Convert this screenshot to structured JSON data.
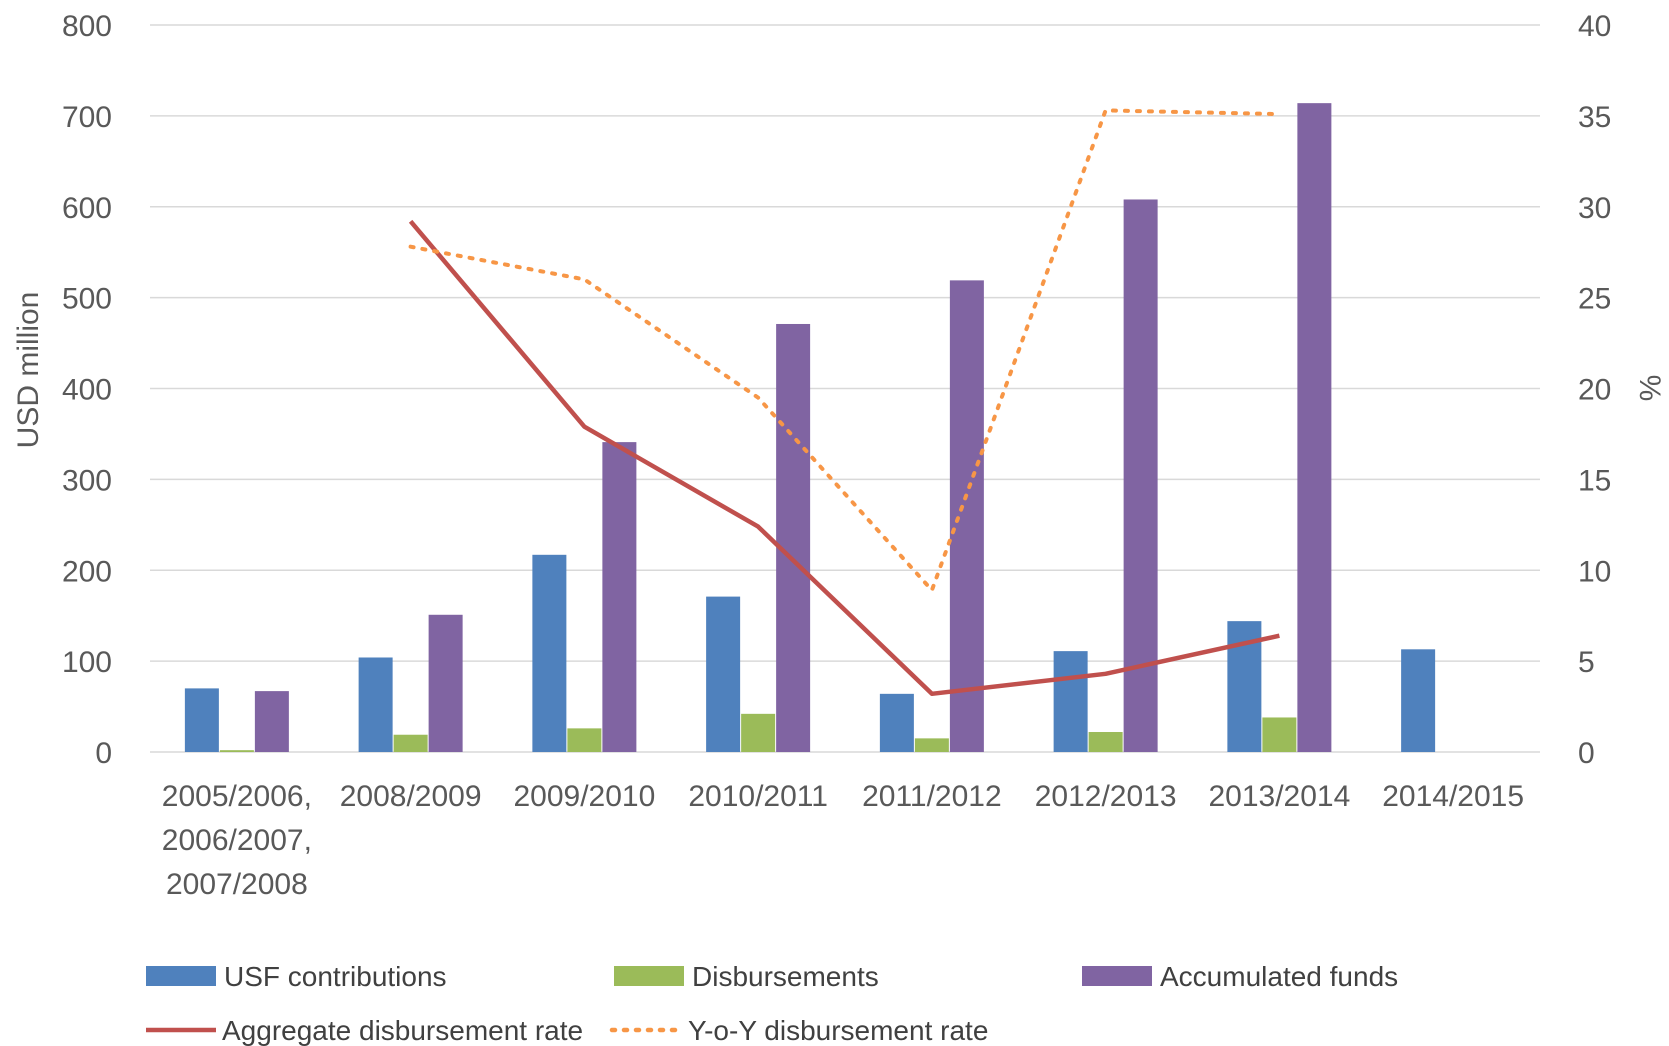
{
  "chart_data": {
    "type": "bar",
    "categories": [
      [
        "2005/2006,",
        "2006/2007,",
        "2007/2008"
      ],
      [
        "2008/2009"
      ],
      [
        "2009/2010"
      ],
      [
        "2010/2011"
      ],
      [
        "2011/2012"
      ],
      [
        "2012/2013"
      ],
      [
        "2013/2014"
      ],
      [
        "2014/2015"
      ]
    ],
    "ylabel": "USD million",
    "y2label": "%",
    "ylim": [
      0,
      800
    ],
    "y2lim": [
      0,
      40
    ],
    "yticks": [
      "0",
      "100",
      "200",
      "300",
      "400",
      "500",
      "600",
      "700",
      "800"
    ],
    "y2ticks": [
      "0",
      "5",
      "10",
      "15",
      "20",
      "25",
      "30",
      "35",
      "40"
    ],
    "grid": true,
    "legend_position": "bottom",
    "series": [
      {
        "name": "USF contributions",
        "kind": "bar",
        "axis": "left",
        "color": "#4F81BD",
        "values": [
          70,
          104,
          217,
          171,
          64,
          111,
          144,
          113
        ]
      },
      {
        "name": "Disbursements",
        "kind": "bar",
        "axis": "left",
        "color": "#9BBB59",
        "values": [
          2,
          19,
          26,
          42,
          15,
          22,
          38,
          null
        ]
      },
      {
        "name": "Accumulated funds",
        "kind": "bar",
        "axis": "left",
        "color": "#8064A2",
        "values": [
          67,
          151,
          341,
          471,
          519,
          608,
          714,
          null
        ]
      },
      {
        "name": "Aggregate disbursement rate",
        "kind": "line",
        "style": "solid",
        "axis": "right",
        "color": "#C0504D",
        "values": [
          null,
          29.2,
          17.9,
          12.4,
          3.2,
          4.3,
          6.4,
          null
        ]
      },
      {
        "name": "Y-o-Y disbursement rate",
        "kind": "line",
        "style": "dotted",
        "axis": "right",
        "color": "#F79646",
        "values": [
          null,
          27.8,
          26.0,
          19.5,
          8.9,
          35.3,
          35.1,
          null
        ]
      }
    ]
  }
}
